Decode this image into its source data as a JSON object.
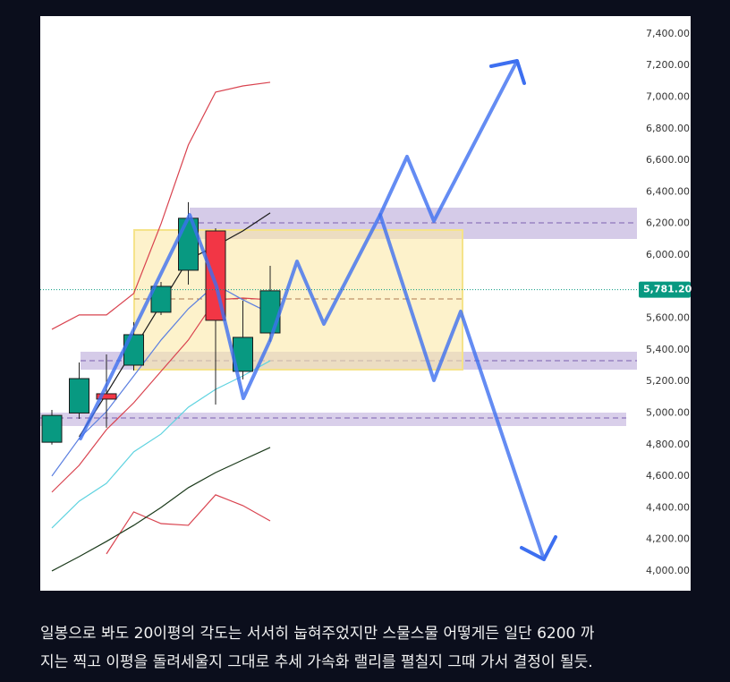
{
  "chart_data": {
    "type": "candlestick",
    "categories": [
      null,
      null,
      null,
      null,
      null,
      null,
      null,
      null,
      null
    ],
    "open": [
      4815,
      5000,
      5122,
      5303,
      5638,
      5904,
      6153,
      5264,
      5507
    ],
    "high": [
      5020,
      5320,
      5371,
      5576,
      5830,
      6335,
      6170,
      5711,
      5932
    ],
    "low": [
      4800,
      4963,
      4907,
      5269,
      5620,
      5813,
      5054,
      5213,
      5451
    ],
    "close": [
      4985,
      5218,
      5088,
      5496,
      5802,
      6233,
      5587,
      5479,
      5774
    ],
    "up_color": "#089981",
    "down_color": "#f23645",
    "series": [
      {
        "color": "#d9434f",
        "values": [
          5530,
          5621,
          5621,
          5757,
          6198,
          6697,
          7032,
          7071,
          7094
        ]
      },
      {
        "color": "#d9434f",
        "values": [
          4499,
          4669,
          4895,
          5065,
          5264,
          5462,
          5717,
          5728,
          5717
        ]
      },
      {
        "color": "#d9434f",
        "values": [
          null,
          null,
          4108,
          4374,
          4300,
          4289,
          4482,
          4414,
          4317
        ]
      },
      {
        "color": "#1b1b1b",
        "values": [
          null,
          4850,
          5122,
          5405,
          5689,
          5972,
          6057,
          6153,
          6267
        ]
      },
      {
        "color": "#1b3a1b",
        "values": [
          4000,
          4091,
          4187,
          4289,
          4402,
          4527,
          4623,
          4703,
          4782
        ]
      },
      {
        "color": "#5b7fe0",
        "values": [
          4601,
          4839,
          5009,
          5235,
          5462,
          5660,
          5813,
          5717,
          5632
        ]
      },
      {
        "color": "#5fd3e0",
        "values": [
          4272,
          4442,
          4555,
          4754,
          4867,
          5037,
          5150,
          5235,
          5331
        ]
      }
    ],
    "last_price": {
      "value": 5781.2,
      "label": "5,781.20"
    },
    "ylim": [
      3875,
      7513
    ],
    "yticks": [
      {
        "value": 4000,
        "label": "4,000.00"
      },
      {
        "value": 4200,
        "label": "4,200.00"
      },
      {
        "value": 4400,
        "label": "4,400.00"
      },
      {
        "value": 4600,
        "label": "4,600.00"
      },
      {
        "value": 4800,
        "label": "4,800.00"
      },
      {
        "value": 5000,
        "label": "5,000.00"
      },
      {
        "value": 5200,
        "label": "5,200.00"
      },
      {
        "value": 5400,
        "label": "5,400.00"
      },
      {
        "value": 5600,
        "label": "5,600.00"
      },
      {
        "value": 5800,
        "label": "5,800.00"
      },
      {
        "value": 6000,
        "label": "6,000.00"
      },
      {
        "value": 6200,
        "label": "6,200.00"
      },
      {
        "value": 6400,
        "label": "6,400.00"
      },
      {
        "value": 6600,
        "label": "6,600.00"
      },
      {
        "value": 6800,
        "label": "6,800.00"
      },
      {
        "value": 7000,
        "label": "7,000.00"
      },
      {
        "value": 7200,
        "label": "7,200.00"
      },
      {
        "value": 7400,
        "label": "7,400.00"
      }
    ]
  },
  "caption": {
    "lines": [
      "일봉으로 봐도 20이평의 각도는 서서히 눕혀주었지만 스물스물 어떻게든 일단 6200 까",
      "지는 찍고 이평을 돌려세울지 그대로 추세 가속화 랠리를 펼칠지 그때 가서 결정이 될듯."
    ]
  }
}
